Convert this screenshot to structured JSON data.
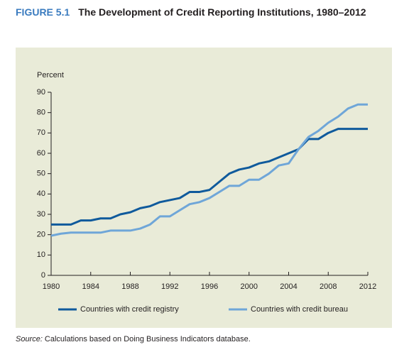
{
  "chart_data": {
    "type": "line",
    "figure_label": "FIGURE 5.1",
    "title": "The Development of Credit Reporting Institutions, 1980–2012",
    "ylabel": "Percent",
    "source_label": "Source:",
    "source": "Calculations based on Doing Business Indicators database.",
    "x": [
      1980,
      1981,
      1982,
      1983,
      1984,
      1985,
      1986,
      1987,
      1988,
      1989,
      1990,
      1991,
      1992,
      1993,
      1994,
      1995,
      1996,
      1997,
      1998,
      1999,
      2000,
      2001,
      2002,
      2003,
      2004,
      2005,
      2006,
      2007,
      2008,
      2009,
      2010,
      2011,
      2012
    ],
    "series": [
      {
        "name": "Countries with credit registry",
        "color": "#0f5a9c",
        "values": [
          25,
          25,
          25,
          27,
          27,
          28,
          28,
          30,
          31,
          33,
          34,
          36,
          37,
          38,
          41,
          41,
          42,
          46,
          50,
          52,
          53,
          55,
          56,
          58,
          60,
          62,
          67,
          67,
          70,
          72,
          72,
          72,
          72
        ]
      },
      {
        "name": "Countries with credit bureau",
        "color": "#6fa6d8",
        "values": [
          19.5,
          20.5,
          21,
          21,
          21,
          21,
          22,
          22,
          22,
          23,
          25,
          29,
          29,
          32,
          35,
          36,
          38,
          41,
          44,
          44,
          47,
          47,
          50,
          54,
          55,
          62,
          68,
          71,
          75,
          78,
          82,
          84,
          84
        ]
      }
    ],
    "xlim": [
      1980,
      2012
    ],
    "xticks": [
      1980,
      1984,
      1988,
      1992,
      1996,
      2000,
      2004,
      2008,
      2012
    ],
    "ylim": [
      0,
      90
    ],
    "yticks": [
      0,
      10,
      20,
      30,
      40,
      50,
      60,
      70,
      80,
      90
    ],
    "background": "#e9ebd8"
  }
}
